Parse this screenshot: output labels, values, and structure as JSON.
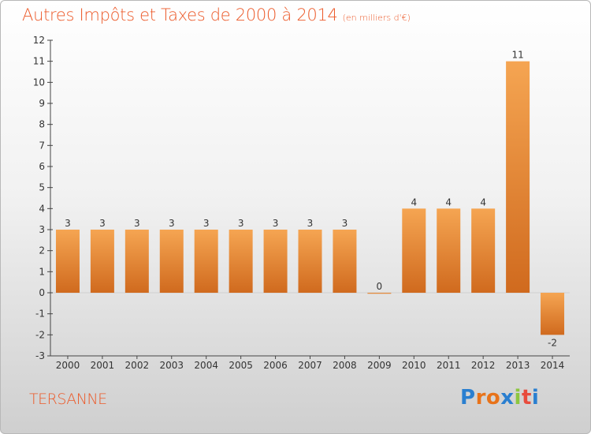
{
  "header": {
    "title": "Autres Impôts et Taxes de 2000 à 2014",
    "subtitle": "(en milliers d'€)"
  },
  "footer": {
    "commune": "TERSANNE",
    "logo_text": "Proxiti",
    "logo_colors": [
      "#2a7fd0",
      "#e8731a",
      "#e8731a",
      "#2a7fd0",
      "#8dc63f",
      "#e84c3d",
      "#2a7fd0"
    ]
  },
  "colors": {
    "bar_light": "#f5a552",
    "bar_dark": "#d06a1e",
    "axis": "#444444"
  },
  "chart_data": {
    "type": "bar",
    "title": "Autres Impôts et Taxes de 2000 à 2014",
    "subtitle": "(en milliers d'€)",
    "xlabel": "",
    "ylabel": "",
    "categories": [
      "2000",
      "2001",
      "2002",
      "2003",
      "2004",
      "2005",
      "2006",
      "2007",
      "2008",
      "2009",
      "2010",
      "2011",
      "2012",
      "2013",
      "2014"
    ],
    "values": [
      3,
      3,
      3,
      3,
      3,
      3,
      3,
      3,
      3,
      0,
      4,
      4,
      4,
      11,
      -2
    ],
    "value_labels": [
      "3",
      "3",
      "3",
      "3",
      "3",
      "3",
      "3",
      "3",
      "3",
      "0",
      "4",
      "4",
      "4",
      "11",
      "-2"
    ],
    "ylim": [
      -3,
      12
    ],
    "yticks": [
      -3,
      -2,
      -1,
      0,
      1,
      2,
      3,
      4,
      5,
      6,
      7,
      8,
      9,
      10,
      11,
      12
    ],
    "grid": false,
    "legend": "none"
  }
}
